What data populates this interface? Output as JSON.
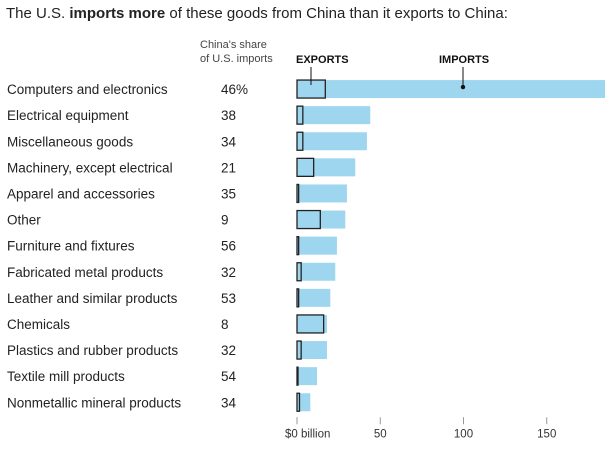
{
  "header": {
    "title_before": "The U.S. ",
    "title_bold": "imports more",
    "title_after": " of these goods from China than it exports to China:",
    "share_line1": "China's share",
    "share_line2": "of U.S. imports"
  },
  "legend": {
    "exports": "EXPORTS",
    "imports": "IMPORTS"
  },
  "colors": {
    "imports": "#9fd6ef",
    "exports_stroke": "#222222",
    "axis": "#999999"
  },
  "chart_data": {
    "type": "bar",
    "title": "The U.S. imports more of these goods from China than it exports to China:",
    "xlabel": "",
    "xlim": [
      0,
      185
    ],
    "x_ticks": [
      0,
      50,
      100,
      150
    ],
    "x_tick_labels": [
      "$0 billion",
      "50",
      "100",
      "150"
    ],
    "categories": [
      "Computers and electronics",
      "Electrical equipment",
      "Miscellaneous goods",
      "Machinery, except electrical",
      "Apparel and accessories",
      "Other",
      "Furniture and fixtures",
      "Fabricated metal products",
      "Leather and similar products",
      "Chemicals",
      "Plastics and rubber products",
      "Textile mill products",
      "Nonmetallic mineral products"
    ],
    "share_labels": [
      "46%",
      "38",
      "34",
      "21",
      "35",
      "9",
      "56",
      "32",
      "53",
      "8",
      "32",
      "54",
      "34"
    ],
    "series": [
      {
        "name": "Imports",
        "values": [
          185,
          44,
          42,
          35,
          30,
          29,
          24,
          23,
          20,
          18,
          18,
          12,
          8
        ]
      },
      {
        "name": "Exports",
        "values": [
          17,
          3.5,
          3.5,
          10,
          1,
          14,
          1,
          2.5,
          1,
          16,
          2.5,
          0.5,
          1.5
        ]
      }
    ]
  }
}
